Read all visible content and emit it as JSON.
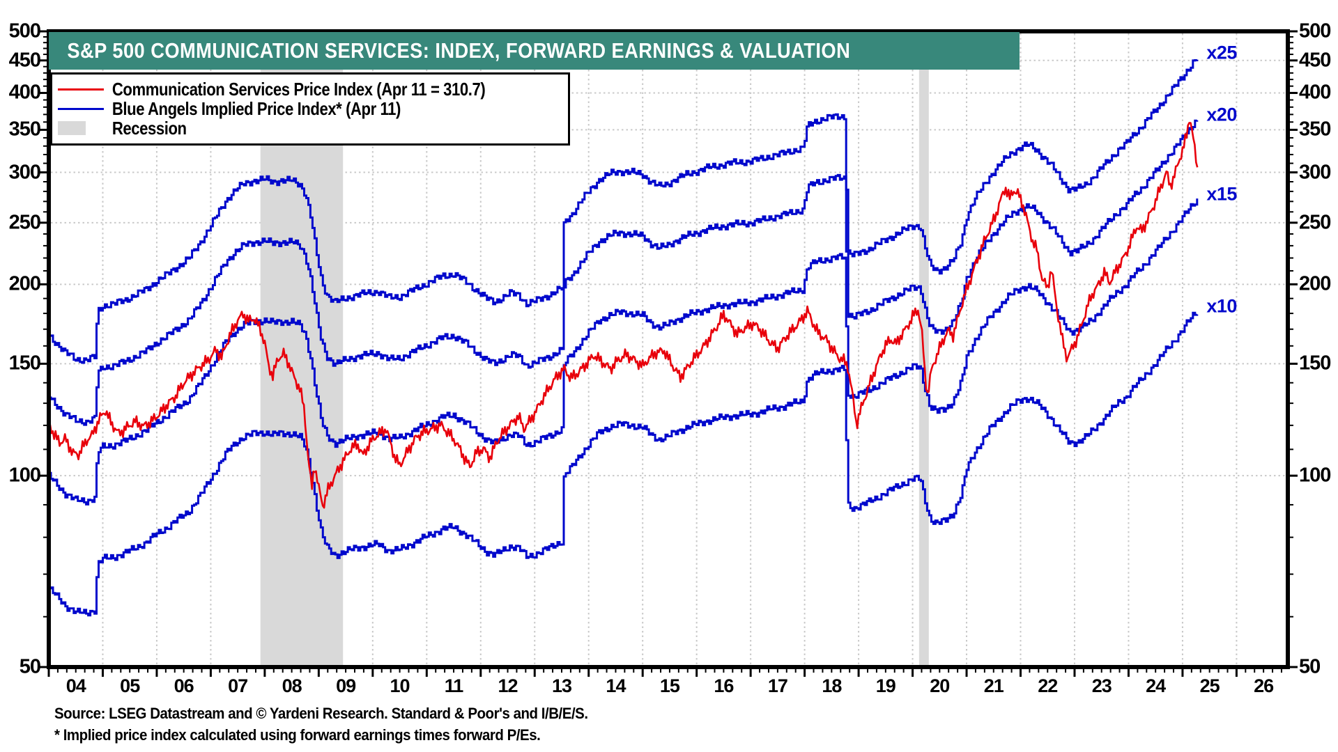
{
  "header": {
    "title": "S&P 500 COMMUNICATION SERVICES: INDEX, FORWARD EARNINGS & VALUATION"
  },
  "legend": {
    "items": [
      {
        "label": "Communication Services Price Index (Apr 11 = 310.7)",
        "swatch": "red-line"
      },
      {
        "label": "Blue Angels Implied Price Index* (Apr 11)",
        "swatch": "blue-line"
      },
      {
        "label": "Recession",
        "swatch": "gray-box"
      }
    ]
  },
  "footer": {
    "source": "Source: LSEG Datastream and © Yardeni Research. Standard & Poor's and I/B/E/S.",
    "footnote": "* Implied price index calculated using forward earnings times forward P/Es."
  },
  "colors": {
    "red": "#e8000b",
    "blue": "#0008cc",
    "teal": "#38887b",
    "recession": "#d9d9d9",
    "grid": "#c9c9c9",
    "frame": "#000000"
  },
  "chart_data": {
    "type": "line",
    "title": "S&P 500 COMMUNICATION SERVICES: INDEX, FORWARD EARNINGS & VALUATION",
    "log_scale": true,
    "x_range": [
      2004.0,
      2026.95
    ],
    "y_range": [
      50,
      500
    ],
    "y_ticks": [
      500,
      450,
      400,
      350,
      300,
      250,
      200,
      150,
      100,
      50
    ],
    "y_minor_step": 10,
    "x_year_labels": [
      "04",
      "05",
      "06",
      "07",
      "08",
      "09",
      "10",
      "11",
      "12",
      "13",
      "14",
      "15",
      "16",
      "17",
      "18",
      "19",
      "20",
      "21",
      "22",
      "23",
      "24",
      "25",
      "26"
    ],
    "x_minor_per_year": 6,
    "grid_on": true,
    "legend_position": "top-left",
    "multiples": [
      10,
      15,
      20,
      25
    ],
    "multiple_labels": [
      {
        "text": "x10",
        "multiple": 10
      },
      {
        "text": "x15",
        "multiple": 15
      },
      {
        "text": "x20",
        "multiple": 20
      },
      {
        "text": "x25",
        "multiple": 25
      }
    ],
    "recessions": [
      [
        2007.92,
        2009.45
      ],
      [
        2020.12,
        2020.3
      ]
    ],
    "price_end_note": "Apr 11 = 310.7",
    "forward_earnings": [
      [
        2004.0,
        6.65
      ],
      [
        2004.15,
        6.45
      ],
      [
        2004.3,
        6.25
      ],
      [
        2004.5,
        6.1
      ],
      [
        2004.7,
        6.08
      ],
      [
        2004.85,
        6.15
      ],
      [
        2004.9,
        7.25
      ],
      [
        2005.0,
        7.4
      ],
      [
        2005.2,
        7.45
      ],
      [
        2005.4,
        7.55
      ],
      [
        2005.6,
        7.7
      ],
      [
        2005.8,
        7.85
      ],
      [
        2006.0,
        8.1
      ],
      [
        2006.2,
        8.3
      ],
      [
        2006.4,
        8.55
      ],
      [
        2006.6,
        8.8
      ],
      [
        2006.8,
        9.3
      ],
      [
        2007.0,
        9.9
      ],
      [
        2007.15,
        10.4
      ],
      [
        2007.3,
        10.9
      ],
      [
        2007.45,
        11.25
      ],
      [
        2007.6,
        11.5
      ],
      [
        2007.8,
        11.65
      ],
      [
        2008.0,
        11.7
      ],
      [
        2008.15,
        11.6
      ],
      [
        2008.3,
        11.65
      ],
      [
        2008.5,
        11.65
      ],
      [
        2008.65,
        11.5
      ],
      [
        2008.75,
        11.1
      ],
      [
        2008.85,
        10.2
      ],
      [
        2008.95,
        9.0
      ],
      [
        2009.05,
        8.1
      ],
      [
        2009.15,
        7.7
      ],
      [
        2009.3,
        7.5
      ],
      [
        2009.5,
        7.6
      ],
      [
        2009.7,
        7.7
      ],
      [
        2009.9,
        7.75
      ],
      [
        2010.1,
        7.8
      ],
      [
        2010.3,
        7.62
      ],
      [
        2010.5,
        7.65
      ],
      [
        2010.7,
        7.8
      ],
      [
        2010.9,
        7.95
      ],
      [
        2011.1,
        8.1
      ],
      [
        2011.3,
        8.25
      ],
      [
        2011.5,
        8.3
      ],
      [
        2011.7,
        8.1
      ],
      [
        2011.9,
        7.85
      ],
      [
        2012.1,
        7.6
      ],
      [
        2012.25,
        7.5
      ],
      [
        2012.4,
        7.62
      ],
      [
        2012.55,
        7.75
      ],
      [
        2012.7,
        7.7
      ],
      [
        2012.85,
        7.45
      ],
      [
        2013.0,
        7.52
      ],
      [
        2013.15,
        7.62
      ],
      [
        2013.3,
        7.72
      ],
      [
        2013.45,
        7.85
      ],
      [
        2013.5,
        7.88
      ],
      [
        2013.54,
        10.0
      ],
      [
        2013.7,
        10.35
      ],
      [
        2013.85,
        10.8
      ],
      [
        2014.0,
        11.2
      ],
      [
        2014.2,
        11.7
      ],
      [
        2014.4,
        11.95
      ],
      [
        2014.6,
        12.05
      ],
      [
        2014.8,
        12.0
      ],
      [
        2015.0,
        11.9
      ],
      [
        2015.15,
        11.6
      ],
      [
        2015.3,
        11.4
      ],
      [
        2015.45,
        11.5
      ],
      [
        2015.6,
        11.7
      ],
      [
        2015.8,
        11.9
      ],
      [
        2016.0,
        12.05
      ],
      [
        2016.2,
        12.2
      ],
      [
        2016.4,
        12.3
      ],
      [
        2016.6,
        12.4
      ],
      [
        2016.8,
        12.45
      ],
      [
        2017.0,
        12.5
      ],
      [
        2017.2,
        12.6
      ],
      [
        2017.4,
        12.75
      ],
      [
        2017.6,
        12.85
      ],
      [
        2017.8,
        13.0
      ],
      [
        2017.97,
        13.1
      ],
      [
        2018.05,
        14.2
      ],
      [
        2018.2,
        14.45
      ],
      [
        2018.4,
        14.6
      ],
      [
        2018.6,
        14.7
      ],
      [
        2018.74,
        14.7
      ],
      [
        2018.79,
        9.0
      ],
      [
        2018.9,
        8.88
      ],
      [
        2019.0,
        8.95
      ],
      [
        2019.2,
        9.1
      ],
      [
        2019.4,
        9.3
      ],
      [
        2019.6,
        9.5
      ],
      [
        2019.8,
        9.7
      ],
      [
        2020.0,
        9.88
      ],
      [
        2020.14,
        9.9
      ],
      [
        2020.22,
        9.2
      ],
      [
        2020.32,
        8.55
      ],
      [
        2020.45,
        8.4
      ],
      [
        2020.6,
        8.5
      ],
      [
        2020.75,
        8.72
      ],
      [
        2020.9,
        9.35
      ],
      [
        2021.0,
        10.25
      ],
      [
        2021.15,
        10.9
      ],
      [
        2021.3,
        11.4
      ],
      [
        2021.45,
        11.9
      ],
      [
        2021.6,
        12.3
      ],
      [
        2021.75,
        12.7
      ],
      [
        2021.9,
        13.0
      ],
      [
        2022.05,
        13.2
      ],
      [
        2022.15,
        13.25
      ],
      [
        2022.3,
        13.0
      ],
      [
        2022.45,
        12.6
      ],
      [
        2022.6,
        12.2
      ],
      [
        2022.75,
        11.7
      ],
      [
        2022.9,
        11.25
      ],
      [
        2023.05,
        11.3
      ],
      [
        2023.2,
        11.5
      ],
      [
        2023.35,
        11.8
      ],
      [
        2023.5,
        12.2
      ],
      [
        2023.65,
        12.6
      ],
      [
        2023.8,
        13.0
      ],
      [
        2023.95,
        13.3
      ],
      [
        2024.1,
        13.8
      ],
      [
        2024.25,
        14.2
      ],
      [
        2024.4,
        14.7
      ],
      [
        2024.55,
        15.2
      ],
      [
        2024.7,
        15.8
      ],
      [
        2024.85,
        16.35
      ],
      [
        2025.0,
        16.95
      ],
      [
        2025.1,
        17.45
      ],
      [
        2025.2,
        17.9
      ],
      [
        2025.29,
        18.2
      ]
    ],
    "price_index": [
      [
        2004.0,
        120
      ],
      [
        2004.1,
        116
      ],
      [
        2004.2,
        113
      ],
      [
        2004.3,
        115
      ],
      [
        2004.45,
        109
      ],
      [
        2004.55,
        108
      ],
      [
        2004.7,
        113
      ],
      [
        2004.8,
        115
      ],
      [
        2004.95,
        123
      ],
      [
        2005.05,
        127
      ],
      [
        2005.15,
        122
      ],
      [
        2005.3,
        117
      ],
      [
        2005.45,
        119
      ],
      [
        2005.6,
        121
      ],
      [
        2005.75,
        119
      ],
      [
        2005.9,
        122
      ],
      [
        2006.05,
        126
      ],
      [
        2006.2,
        130
      ],
      [
        2006.35,
        133
      ],
      [
        2006.5,
        139
      ],
      [
        2006.65,
        144
      ],
      [
        2006.8,
        149
      ],
      [
        2006.95,
        153
      ],
      [
        2007.1,
        158
      ],
      [
        2007.2,
        153
      ],
      [
        2007.35,
        165
      ],
      [
        2007.5,
        175
      ],
      [
        2007.6,
        180
      ],
      [
        2007.7,
        176
      ],
      [
        2007.8,
        178
      ],
      [
        2007.9,
        172
      ],
      [
        2008.0,
        162
      ],
      [
        2008.07,
        148
      ],
      [
        2008.15,
        143
      ],
      [
        2008.25,
        152
      ],
      [
        2008.35,
        155
      ],
      [
        2008.45,
        150
      ],
      [
        2008.55,
        143
      ],
      [
        2008.65,
        138
      ],
      [
        2008.73,
        128
      ],
      [
        2008.8,
        108
      ],
      [
        2008.87,
        95
      ],
      [
        2008.92,
        104
      ],
      [
        2009.0,
        95
      ],
      [
        2009.08,
        89
      ],
      [
        2009.18,
        95
      ],
      [
        2009.3,
        100
      ],
      [
        2009.45,
        106
      ],
      [
        2009.6,
        111
      ],
      [
        2009.72,
        112
      ],
      [
        2009.82,
        107
      ],
      [
        2009.95,
        112
      ],
      [
        2010.1,
        116
      ],
      [
        2010.25,
        119
      ],
      [
        2010.4,
        108
      ],
      [
        2010.5,
        104
      ],
      [
        2010.65,
        109
      ],
      [
        2010.8,
        114
      ],
      [
        2010.95,
        117
      ],
      [
        2011.1,
        119
      ],
      [
        2011.25,
        121
      ],
      [
        2011.4,
        117
      ],
      [
        2011.55,
        112
      ],
      [
        2011.7,
        106
      ],
      [
        2011.8,
        103
      ],
      [
        2011.92,
        109
      ],
      [
        2012.05,
        111
      ],
      [
        2012.17,
        107
      ],
      [
        2012.3,
        113
      ],
      [
        2012.45,
        117
      ],
      [
        2012.6,
        121
      ],
      [
        2012.7,
        124
      ],
      [
        2012.8,
        119
      ],
      [
        2012.92,
        123
      ],
      [
        2013.05,
        128
      ],
      [
        2013.17,
        133
      ],
      [
        2013.3,
        138
      ],
      [
        2013.45,
        144
      ],
      [
        2013.55,
        147
      ],
      [
        2013.67,
        143
      ],
      [
        2013.8,
        146
      ],
      [
        2013.95,
        150
      ],
      [
        2014.1,
        154
      ],
      [
        2014.25,
        150
      ],
      [
        2014.4,
        147
      ],
      [
        2014.55,
        153
      ],
      [
        2014.7,
        156
      ],
      [
        2014.85,
        152
      ],
      [
        2015.0,
        148
      ],
      [
        2015.12,
        152
      ],
      [
        2015.25,
        156
      ],
      [
        2015.4,
        158
      ],
      [
        2015.55,
        150
      ],
      [
        2015.7,
        143
      ],
      [
        2015.82,
        147
      ],
      [
        2015.95,
        152
      ],
      [
        2016.1,
        158
      ],
      [
        2016.25,
        166
      ],
      [
        2016.4,
        174
      ],
      [
        2016.5,
        180
      ],
      [
        2016.62,
        173
      ],
      [
        2016.75,
        166
      ],
      [
        2016.9,
        170
      ],
      [
        2017.05,
        174
      ],
      [
        2017.2,
        170
      ],
      [
        2017.35,
        163
      ],
      [
        2017.5,
        158
      ],
      [
        2017.65,
        164
      ],
      [
        2017.8,
        170
      ],
      [
        2017.95,
        177
      ],
      [
        2018.05,
        183
      ],
      [
        2018.15,
        175
      ],
      [
        2018.25,
        168
      ],
      [
        2018.4,
        163
      ],
      [
        2018.5,
        158
      ],
      [
        2018.62,
        153
      ],
      [
        2018.72,
        152
      ],
      [
        2018.8,
        149
      ],
      [
        2018.88,
        136
      ],
      [
        2018.96,
        121
      ],
      [
        2019.02,
        126
      ],
      [
        2019.12,
        133
      ],
      [
        2019.25,
        142
      ],
      [
        2019.4,
        153
      ],
      [
        2019.5,
        160
      ],
      [
        2019.6,
        164
      ],
      [
        2019.7,
        162
      ],
      [
        2019.8,
        168
      ],
      [
        2019.9,
        172
      ],
      [
        2020.0,
        178
      ],
      [
        2020.1,
        182
      ],
      [
        2020.17,
        168
      ],
      [
        2020.23,
        143
      ],
      [
        2020.28,
        133
      ],
      [
        2020.35,
        146
      ],
      [
        2020.45,
        155
      ],
      [
        2020.55,
        163
      ],
      [
        2020.65,
        170
      ],
      [
        2020.75,
        167
      ],
      [
        2020.85,
        178
      ],
      [
        2020.95,
        190
      ],
      [
        2021.05,
        200
      ],
      [
        2021.15,
        212
      ],
      [
        2021.25,
        224
      ],
      [
        2021.35,
        237
      ],
      [
        2021.45,
        248
      ],
      [
        2021.55,
        260
      ],
      [
        2021.65,
        275
      ],
      [
        2021.72,
        284
      ],
      [
        2021.8,
        272
      ],
      [
        2021.87,
        280
      ],
      [
        2021.95,
        276
      ],
      [
        2022.03,
        268
      ],
      [
        2022.12,
        252
      ],
      [
        2022.22,
        235
      ],
      [
        2022.3,
        228
      ],
      [
        2022.4,
        205
      ],
      [
        2022.5,
        198
      ],
      [
        2022.57,
        212
      ],
      [
        2022.67,
        183
      ],
      [
        2022.77,
        163
      ],
      [
        2022.86,
        152
      ],
      [
        2022.95,
        158
      ],
      [
        2023.05,
        165
      ],
      [
        2023.17,
        178
      ],
      [
        2023.3,
        192
      ],
      [
        2023.45,
        200
      ],
      [
        2023.55,
        208
      ],
      [
        2023.65,
        200
      ],
      [
        2023.8,
        212
      ],
      [
        2023.95,
        224
      ],
      [
        2024.05,
        236
      ],
      [
        2024.15,
        248
      ],
      [
        2024.25,
        243
      ],
      [
        2024.35,
        252
      ],
      [
        2024.45,
        262
      ],
      [
        2024.55,
        276
      ],
      [
        2024.63,
        288
      ],
      [
        2024.7,
        300
      ],
      [
        2024.77,
        286
      ],
      [
        2024.85,
        298
      ],
      [
        2024.95,
        318
      ],
      [
        2025.02,
        330
      ],
      [
        2025.08,
        346
      ],
      [
        2025.13,
        368
      ],
      [
        2025.17,
        350
      ],
      [
        2025.22,
        328
      ],
      [
        2025.29,
        296
      ]
    ]
  }
}
